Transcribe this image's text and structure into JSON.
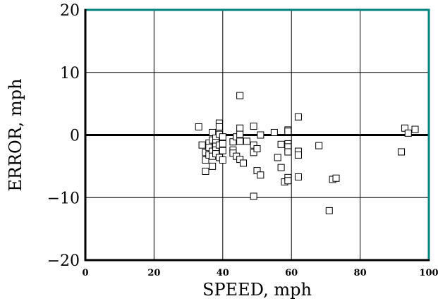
{
  "chart_data": {
    "type": "scatter",
    "title": "",
    "xlabel": "SPEED, mph",
    "ylabel": "ERROR, mph",
    "xlim": [
      0,
      100
    ],
    "ylim": [
      -20,
      20
    ],
    "x_ticks": [
      0,
      20,
      40,
      60,
      80,
      100
    ],
    "y_ticks": [
      -20,
      -10,
      0,
      10,
      20
    ],
    "x_tick_labels": [
      "0",
      "20",
      "40",
      "60",
      "80",
      "100"
    ],
    "y_tick_labels": [
      "−20",
      "−10",
      "0",
      "10",
      "20"
    ],
    "grid": true,
    "zero_line": true,
    "marker": "open-square",
    "frame_color": "#00827f",
    "points": [
      {
        "x": 33,
        "y": 1.3
      },
      {
        "x": 34,
        "y": -1.6
      },
      {
        "x": 35,
        "y": -2.8
      },
      {
        "x": 35,
        "y": -4.0
      },
      {
        "x": 35,
        "y": -5.8
      },
      {
        "x": 36,
        "y": -1.3
      },
      {
        "x": 36,
        "y": -2.0
      },
      {
        "x": 36,
        "y": -3.2
      },
      {
        "x": 37,
        "y": 0.4
      },
      {
        "x": 37,
        "y": -0.8
      },
      {
        "x": 37,
        "y": -2.6
      },
      {
        "x": 37,
        "y": -3.4
      },
      {
        "x": 37,
        "y": -5.0
      },
      {
        "x": 38,
        "y": -0.5
      },
      {
        "x": 38,
        "y": -1.2
      },
      {
        "x": 38,
        "y": -1.8
      },
      {
        "x": 38,
        "y": -2.4
      },
      {
        "x": 38,
        "y": -3.0
      },
      {
        "x": 39,
        "y": 1.9
      },
      {
        "x": 39,
        "y": 1.3
      },
      {
        "x": 39,
        "y": 0.1
      },
      {
        "x": 39,
        "y": -1.6
      },
      {
        "x": 39,
        "y": -3.6
      },
      {
        "x": 40,
        "y": -0.3
      },
      {
        "x": 40,
        "y": -1.4
      },
      {
        "x": 40,
        "y": -2.5
      },
      {
        "x": 40,
        "y": -4.0
      },
      {
        "x": 43,
        "y": -1.1
      },
      {
        "x": 43,
        "y": -2.4
      },
      {
        "x": 43,
        "y": -2.9
      },
      {
        "x": 44,
        "y": -0.3
      },
      {
        "x": 44,
        "y": -3.4
      },
      {
        "x": 45,
        "y": 6.3
      },
      {
        "x": 45,
        "y": 1.1
      },
      {
        "x": 45,
        "y": 0.1
      },
      {
        "x": 45,
        "y": -1.0
      },
      {
        "x": 45,
        "y": -3.9
      },
      {
        "x": 46,
        "y": -4.5
      },
      {
        "x": 47,
        "y": -1.0
      },
      {
        "x": 49,
        "y": 1.4
      },
      {
        "x": 49,
        "y": -1.6
      },
      {
        "x": 49,
        "y": -2.8
      },
      {
        "x": 49,
        "y": -9.8
      },
      {
        "x": 50,
        "y": -2.2
      },
      {
        "x": 50,
        "y": -5.7
      },
      {
        "x": 51,
        "y": 0.0
      },
      {
        "x": 51,
        "y": -6.4
      },
      {
        "x": 55,
        "y": 0.4
      },
      {
        "x": 56,
        "y": -3.6
      },
      {
        "x": 57,
        "y": -1.5
      },
      {
        "x": 57,
        "y": -5.2
      },
      {
        "x": 58,
        "y": -7.5
      },
      {
        "x": 59,
        "y": 0.8
      },
      {
        "x": 59,
        "y": 0.6
      },
      {
        "x": 59,
        "y": -1.4
      },
      {
        "x": 59,
        "y": -1.9
      },
      {
        "x": 59,
        "y": -2.7
      },
      {
        "x": 59,
        "y": -6.8
      },
      {
        "x": 59,
        "y": -7.3
      },
      {
        "x": 62,
        "y": 2.9
      },
      {
        "x": 62,
        "y": -2.6
      },
      {
        "x": 62,
        "y": -3.2
      },
      {
        "x": 62,
        "y": -6.7
      },
      {
        "x": 68,
        "y": -1.7
      },
      {
        "x": 71,
        "y": -12.1
      },
      {
        "x": 72,
        "y": -7.1
      },
      {
        "x": 73,
        "y": -6.9
      },
      {
        "x": 92,
        "y": -2.7
      },
      {
        "x": 93,
        "y": 1.1
      },
      {
        "x": 94,
        "y": 0.3
      },
      {
        "x": 96,
        "y": 0.9
      }
    ]
  }
}
